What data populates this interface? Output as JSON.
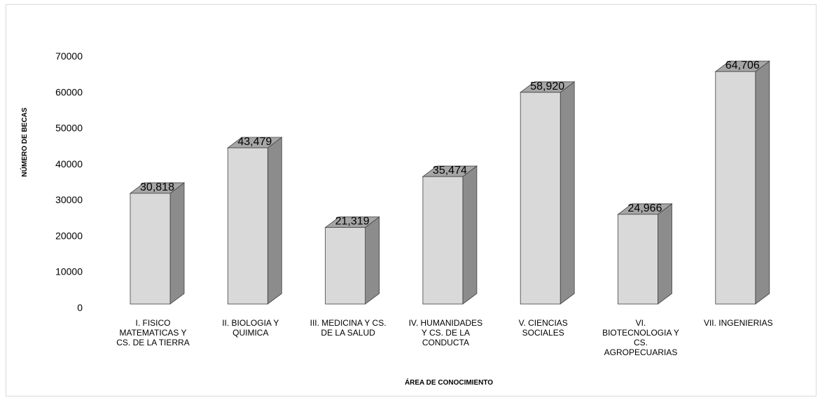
{
  "chart_data": {
    "type": "bar",
    "xlabel": "ÁREA DE CONOCIMIENTO",
    "ylabel": "NÚMERO DE BECAS",
    "ylim": [
      0,
      70000
    ],
    "yticks": [
      "0",
      "10000",
      "20000",
      "30000",
      "40000",
      "50000",
      "60000",
      "70000"
    ],
    "categories": [
      [
        "I. FISICO",
        "MATEMATICAS Y",
        "CS. DE LA TIERRA"
      ],
      [
        "II. BIOLOGIA Y",
        "QUIMICA"
      ],
      [
        "III. MEDICINA Y CS.",
        "DE LA SALUD"
      ],
      [
        "IV. HUMANIDADES",
        "Y CS. DE LA",
        "CONDUCTA"
      ],
      [
        "V. CIENCIAS",
        "SOCIALES"
      ],
      [
        "VI.",
        "BIOTECNOLOGIA Y",
        "CS.",
        "AGROPECUARIAS"
      ],
      [
        "VII. INGENIERIAS"
      ]
    ],
    "values": [
      30818,
      43479,
      21319,
      35474,
      58920,
      24966,
      64706
    ],
    "value_labels": [
      "30,818",
      "43,479",
      "21,319",
      "35,474",
      "58,920",
      "24,966",
      "64,706"
    ],
    "grid": false,
    "legend": "none",
    "colors": {
      "front": "#d9d9d9",
      "top": "#a6a6a6",
      "side": "#8c8c8c",
      "stroke": "#404040"
    }
  }
}
